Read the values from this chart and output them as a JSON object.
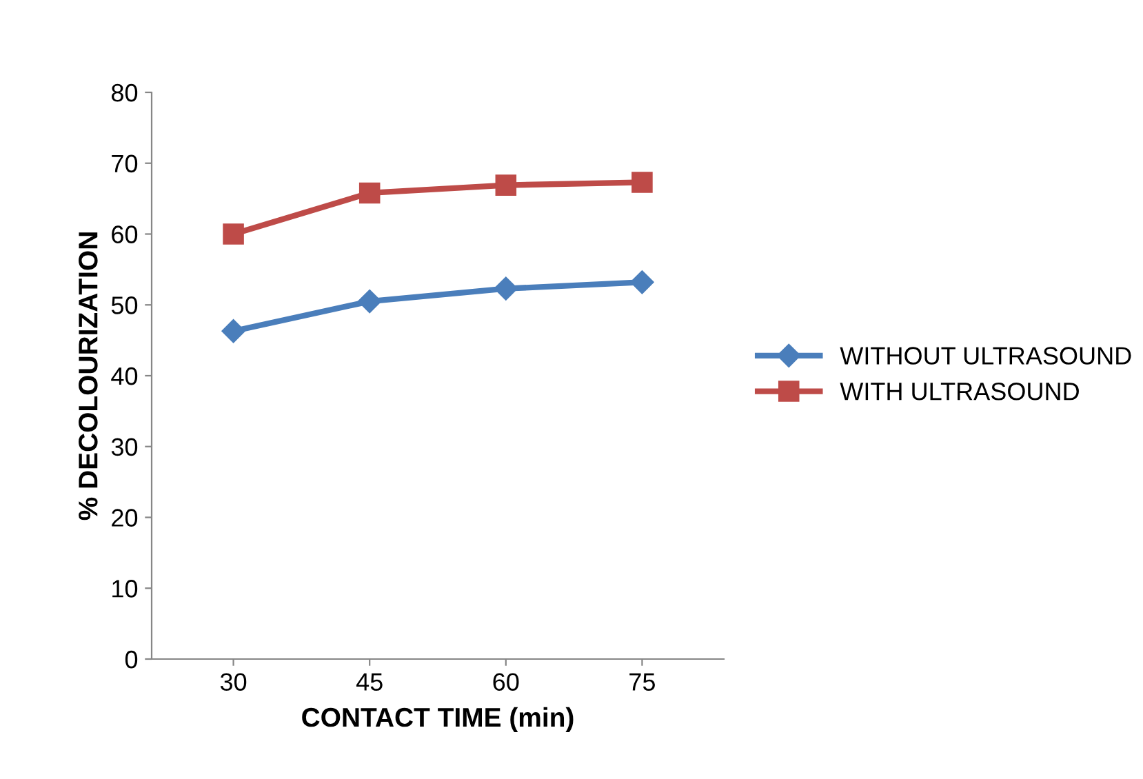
{
  "chart_data": {
    "type": "line",
    "xlabel": "CONTACT TIME (min)",
    "ylabel": "% DECOLOURIZATION",
    "categories": [
      "30",
      "45",
      "60",
      "75"
    ],
    "series": [
      {
        "name": "WITHOUT ULTRASOUND",
        "color": "#4a7ebb",
        "marker": "diamond",
        "values": [
          46.3,
          50.5,
          52.3,
          53.2
        ]
      },
      {
        "name": "WITH ULTRASOUND",
        "color": "#be4b48",
        "marker": "square",
        "values": [
          60.0,
          65.8,
          66.9,
          67.3
        ]
      }
    ],
    "ylim": [
      0,
      80
    ],
    "yticks": [
      0,
      10,
      20,
      30,
      40,
      50,
      60,
      70,
      80
    ],
    "grid": false,
    "legend": "right",
    "line_style": "solid"
  }
}
